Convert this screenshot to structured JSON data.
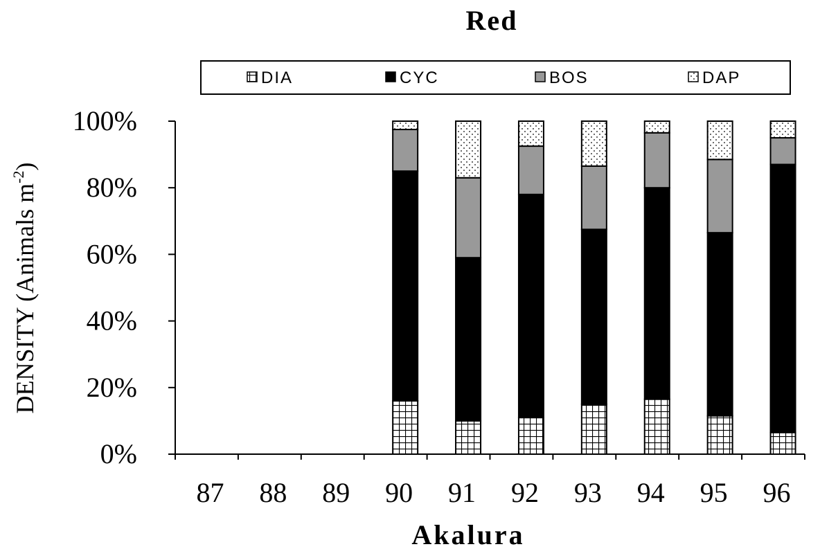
{
  "chart_data": {
    "type": "bar",
    "stacked": true,
    "title": "Red",
    "xlabel": "Akalura",
    "ylabel_main": "DENSITY (Animals m",
    "ylabel_sup": "-2",
    "ylabel_close": ")",
    "categories": [
      "87",
      "88",
      "89",
      "90",
      "91",
      "92",
      "93",
      "94",
      "95",
      "96"
    ],
    "yticks": [
      "0%",
      "20%",
      "40%",
      "60%",
      "80%",
      "100%"
    ],
    "ylim": [
      0,
      100
    ],
    "legend_position": "top",
    "series": [
      {
        "name": "DIA",
        "pattern": "grid",
        "values": [
          null,
          null,
          null,
          16,
          10,
          11,
          15,
          16.5,
          11.5,
          6.5
        ]
      },
      {
        "name": "CYC",
        "pattern": "solid",
        "values": [
          null,
          null,
          null,
          69,
          49,
          67,
          52.5,
          63.5,
          55,
          80.5
        ]
      },
      {
        "name": "BOS",
        "pattern": "gray",
        "values": [
          null,
          null,
          null,
          12.5,
          24,
          14.5,
          19,
          16.5,
          22,
          8
        ]
      },
      {
        "name": "DAP",
        "pattern": "dotted",
        "values": [
          null,
          null,
          null,
          2.5,
          17,
          7.5,
          13.5,
          3.5,
          11.5,
          5
        ]
      }
    ],
    "colors": {
      "solid": "#000000",
      "gray": "#999999",
      "background": "#ffffff"
    }
  }
}
